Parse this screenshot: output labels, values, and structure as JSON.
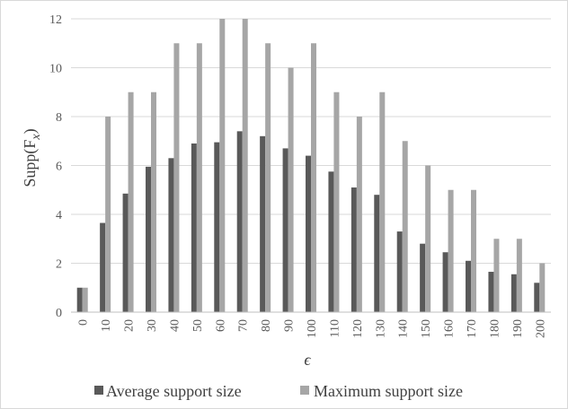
{
  "chart_data": {
    "type": "bar",
    "xlabel": "ϵ",
    "ylabel_main": "Supp(F",
    "ylabel_sub": "x",
    "ylabel_close": ")",
    "ylim": [
      0,
      12
    ],
    "yticks": [
      "0",
      "2",
      "4",
      "6",
      "8",
      "10",
      "12"
    ],
    "grid": true,
    "legend_position": "bottom",
    "categories": [
      "0",
      "10",
      "20",
      "30",
      "40",
      "50",
      "60",
      "70",
      "80",
      "90",
      "100",
      "110",
      "120",
      "130",
      "140",
      "150",
      "160",
      "170",
      "180",
      "190",
      "200"
    ],
    "series": [
      {
        "name": "Average support size",
        "color": "#595959",
        "values": [
          1,
          3.65,
          4.85,
          5.95,
          6.3,
          6.9,
          6.95,
          7.4,
          7.2,
          6.7,
          6.4,
          5.75,
          5.1,
          4.8,
          3.3,
          2.8,
          2.45,
          2.1,
          1.65,
          1.55,
          1.2
        ]
      },
      {
        "name": "Maximum support size",
        "color": "#a6a6a6",
        "values": [
          1,
          8,
          9,
          9,
          11,
          11,
          12,
          12,
          11,
          10,
          11,
          9,
          8,
          9,
          7,
          6,
          5,
          5,
          3,
          3,
          2
        ]
      }
    ]
  }
}
